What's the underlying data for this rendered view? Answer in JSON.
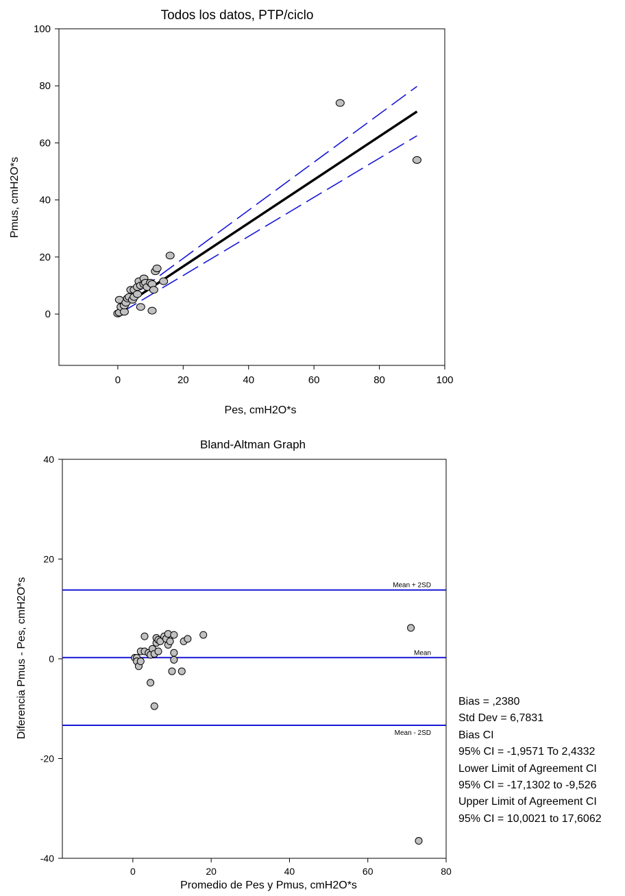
{
  "chart_data": [
    {
      "type": "scatter",
      "title": "Todos los datos, PTP/ciclo",
      "xlabel": "Pes, cmH2O*s",
      "ylabel": "Pmus, cmH2O*s",
      "xlim": [
        -18,
        100
      ],
      "ylim": [
        -18,
        100
      ],
      "xticks": [
        "0",
        "20",
        "40",
        "60",
        "80",
        "100"
      ],
      "yticks": [
        "0",
        "20",
        "40",
        "60",
        "80",
        "100"
      ],
      "grid": false,
      "colors": {
        "points": "#c0c0c0",
        "regression": "#000000",
        "confidence": "#1515d6"
      },
      "points": [
        [
          0.0,
          0.2
        ],
        [
          0.5,
          0.5
        ],
        [
          0.5,
          5.0
        ],
        [
          1.0,
          2.5
        ],
        [
          2.0,
          0.8
        ],
        [
          2.0,
          3.0
        ],
        [
          2.5,
          4.0
        ],
        [
          3.0,
          5.5
        ],
        [
          3.5,
          6.0
        ],
        [
          4.0,
          8.5
        ],
        [
          4.5,
          5.0
        ],
        [
          5.0,
          8.5
        ],
        [
          5.0,
          6.0
        ],
        [
          6.0,
          7.0
        ],
        [
          6.0,
          9.5
        ],
        [
          6.5,
          11.5
        ],
        [
          7.0,
          10.0
        ],
        [
          7.0,
          2.5
        ],
        [
          8.0,
          10.5
        ],
        [
          8.0,
          12.5
        ],
        [
          8.5,
          11.0
        ],
        [
          9.0,
          9.5
        ],
        [
          10.0,
          11.0
        ],
        [
          10.5,
          10.5
        ],
        [
          10.5,
          1.2
        ],
        [
          11.0,
          8.5
        ],
        [
          11.5,
          15.0
        ],
        [
          12.0,
          16.0
        ],
        [
          14.0,
          11.5
        ],
        [
          16.0,
          20.5
        ],
        [
          68.0,
          74.0
        ],
        [
          91.5,
          54.0
        ]
      ],
      "regression": {
        "x": [
          0,
          91.5
        ],
        "y": [
          1.5,
          71.0
        ]
      },
      "confidence_upper": {
        "x": [
          1,
          91.5
        ],
        "y": [
          3.5,
          79.8
        ]
      },
      "confidence_lower": {
        "x": [
          1,
          91.5
        ],
        "y": [
          0.5,
          62.5
        ]
      }
    },
    {
      "type": "scatter",
      "title": "Bland-Altman Graph",
      "xlabel": "Promedio de Pes y Pmus, cmH2O*s",
      "ylabel": "Diferencia Pmus - Pes, cmH2O*s",
      "xlim": [
        -18,
        80
      ],
      "ylim": [
        -40,
        40
      ],
      "xticks": [
        "0",
        "20",
        "40",
        "60",
        "80"
      ],
      "yticks": [
        "-40",
        "-20",
        "0",
        "20",
        "40"
      ],
      "grid": false,
      "colors": {
        "points": "#c0c0c0",
        "lines": "#1515d6"
      },
      "reference_lines": [
        {
          "name": "Mean + 2SD",
          "y": 13.8
        },
        {
          "name": "Mean",
          "y": 0.238
        },
        {
          "name": "Mean - 2SD",
          "y": -13.33
        }
      ],
      "points": [
        [
          0.5,
          0.2
        ],
        [
          1.0,
          0.2
        ],
        [
          1.0,
          -0.5
        ],
        [
          1.5,
          -1.5
        ],
        [
          2.0,
          -0.5
        ],
        [
          2.0,
          1.5
        ],
        [
          3.0,
          4.5
        ],
        [
          3.0,
          1.5
        ],
        [
          4.0,
          1.2
        ],
        [
          4.5,
          -4.8
        ],
        [
          4.5,
          0.8
        ],
        [
          5.0,
          2.0
        ],
        [
          5.5,
          1.0
        ],
        [
          5.5,
          -9.5
        ],
        [
          6.0,
          3.2
        ],
        [
          6.0,
          4.2
        ],
        [
          6.5,
          1.5
        ],
        [
          6.5,
          3.8
        ],
        [
          7.0,
          3.5
        ],
        [
          8.0,
          4.5
        ],
        [
          8.5,
          4.0
        ],
        [
          9.0,
          5.0
        ],
        [
          9.0,
          2.8
        ],
        [
          9.5,
          3.5
        ],
        [
          10.0,
          -2.5
        ],
        [
          10.5,
          4.8
        ],
        [
          10.5,
          -0.2
        ],
        [
          10.5,
          1.2
        ],
        [
          12.5,
          -2.5
        ],
        [
          13.0,
          3.5
        ],
        [
          14.0,
          4.0
        ],
        [
          18.0,
          4.8
        ],
        [
          71.0,
          6.2
        ],
        [
          73.0,
          -36.5
        ]
      ]
    }
  ],
  "stats": {
    "bias": "Bias = ,2380",
    "std_dev": "Std Dev = 6,7831",
    "bias_ci_title": "Bias CI",
    "bias_ci": "95% CI = -1,9571 To 2,4332",
    "lower_loa_title": "Lower Limit of Agreement CI",
    "lower_loa_ci": "95% CI = -17,1302 to -9,526",
    "upper_loa_title": "Upper Limit of Agreement CI",
    "upper_loa_ci": "95% CI = 10,0021 to 17,6062"
  }
}
